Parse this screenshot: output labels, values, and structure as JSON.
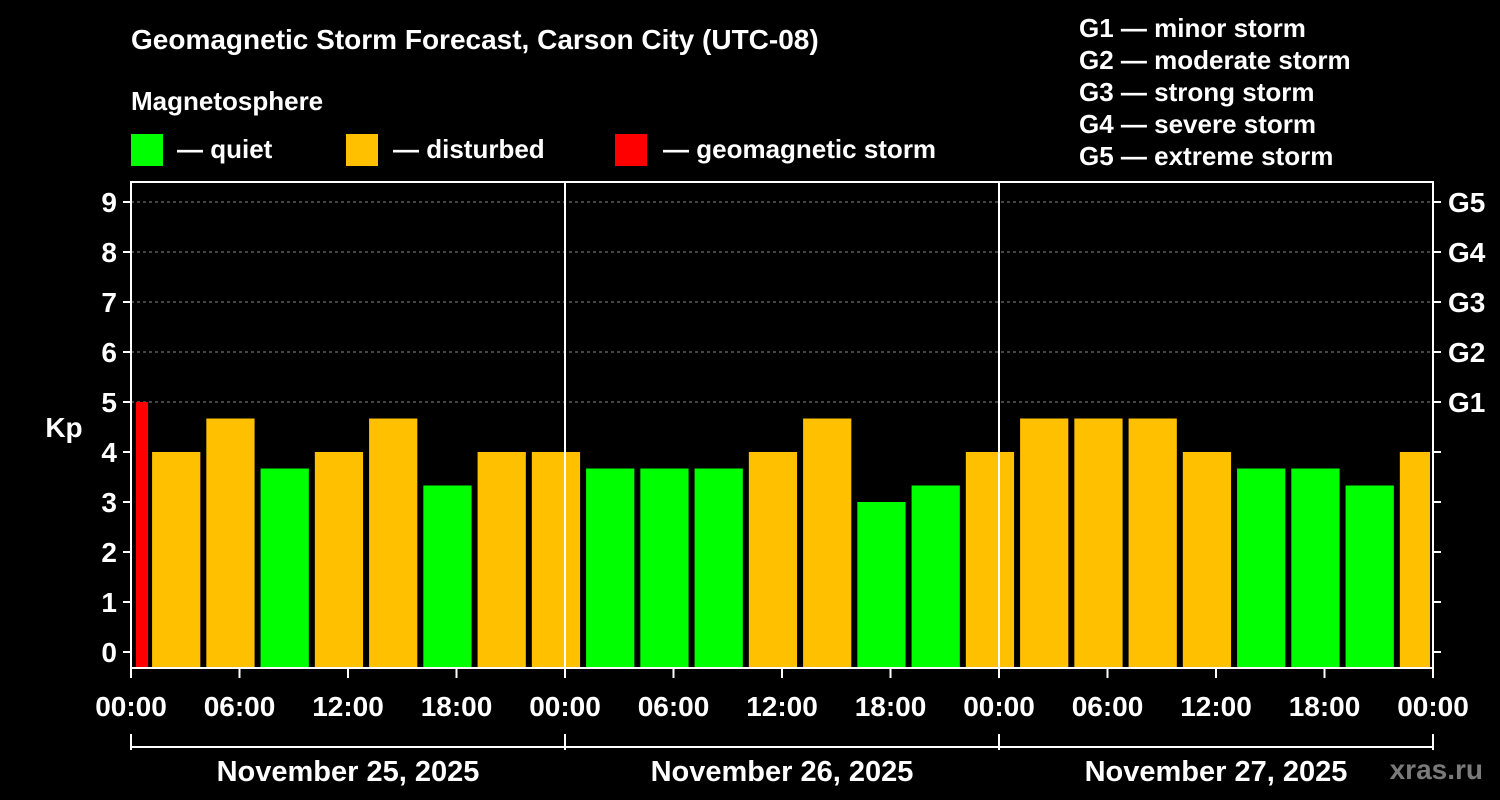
{
  "title": "Geomagnetic Storm Forecast, Carson City (UTC-08)",
  "legend": {
    "heading": "Magnetosphere",
    "items": [
      {
        "label": "— quiet",
        "color": "#00FF00"
      },
      {
        "label": "— disturbed",
        "color": "#FFC000"
      },
      {
        "label": "— geomagnetic storm",
        "color": "#FF0000"
      }
    ]
  },
  "scale_legend": [
    "G1 — minor storm",
    "G2 — moderate storm",
    "G3 — strong storm",
    "G4 — severe storm",
    "G5 — extreme storm"
  ],
  "watermark": "xras.ru",
  "chart_data": {
    "type": "bar",
    "ylabel": "Kp",
    "ylim": [
      0,
      9
    ],
    "yticks": [
      "0",
      "1",
      "2",
      "3",
      "4",
      "5",
      "6",
      "7",
      "8",
      "9"
    ],
    "right_ticks": [
      {
        "kp": 5,
        "label": "G1"
      },
      {
        "kp": 6,
        "label": "G2"
      },
      {
        "kp": 7,
        "label": "G3"
      },
      {
        "kp": 8,
        "label": "G4"
      },
      {
        "kp": 9,
        "label": "G5"
      }
    ],
    "xtick_labels": [
      "00:00",
      "06:00",
      "12:00",
      "18:00",
      "00:00",
      "06:00",
      "12:00",
      "18:00",
      "00:00",
      "06:00",
      "12:00",
      "18:00",
      "00:00"
    ],
    "days": [
      "November 25, 2025",
      "November 26, 2025",
      "November 27, 2025"
    ],
    "grid": "dashed horizontal",
    "colors": {
      "quiet": "#00FF00",
      "disturbed": "#FFC000",
      "storm": "#FF0000"
    },
    "bars": [
      {
        "start": 0,
        "end": 1,
        "kp": 5.0,
        "level": "storm"
      },
      {
        "start": 1,
        "end": 4,
        "kp": 4.0,
        "level": "disturbed"
      },
      {
        "start": 4,
        "end": 7,
        "kp": 4.67,
        "level": "disturbed"
      },
      {
        "start": 7,
        "end": 10,
        "kp": 3.67,
        "level": "quiet"
      },
      {
        "start": 10,
        "end": 13,
        "kp": 4.0,
        "level": "disturbed"
      },
      {
        "start": 13,
        "end": 16,
        "kp": 4.67,
        "level": "disturbed"
      },
      {
        "start": 16,
        "end": 19,
        "kp": 3.33,
        "level": "quiet"
      },
      {
        "start": 19,
        "end": 22,
        "kp": 4.0,
        "level": "disturbed"
      },
      {
        "start": 22,
        "end": 25,
        "kp": 4.0,
        "level": "disturbed"
      },
      {
        "start": 25,
        "end": 28,
        "kp": 3.67,
        "level": "quiet"
      },
      {
        "start": 28,
        "end": 31,
        "kp": 3.67,
        "level": "quiet"
      },
      {
        "start": 31,
        "end": 34,
        "kp": 3.67,
        "level": "quiet"
      },
      {
        "start": 34,
        "end": 37,
        "kp": 4.0,
        "level": "disturbed"
      },
      {
        "start": 37,
        "end": 40,
        "kp": 4.67,
        "level": "disturbed"
      },
      {
        "start": 40,
        "end": 43,
        "kp": 3.0,
        "level": "quiet"
      },
      {
        "start": 43,
        "end": 46,
        "kp": 3.33,
        "level": "quiet"
      },
      {
        "start": 46,
        "end": 49,
        "kp": 4.0,
        "level": "disturbed"
      },
      {
        "start": 49,
        "end": 52,
        "kp": 4.67,
        "level": "disturbed"
      },
      {
        "start": 52,
        "end": 55,
        "kp": 4.67,
        "level": "disturbed"
      },
      {
        "start": 55,
        "end": 58,
        "kp": 4.67,
        "level": "disturbed"
      },
      {
        "start": 58,
        "end": 61,
        "kp": 4.0,
        "level": "disturbed"
      },
      {
        "start": 61,
        "end": 64,
        "kp": 3.67,
        "level": "quiet"
      },
      {
        "start": 64,
        "end": 67,
        "kp": 3.67,
        "level": "quiet"
      },
      {
        "start": 67,
        "end": 70,
        "kp": 3.33,
        "level": "quiet"
      },
      {
        "start": 70,
        "end": 72,
        "kp": 4.0,
        "level": "disturbed"
      }
    ]
  }
}
